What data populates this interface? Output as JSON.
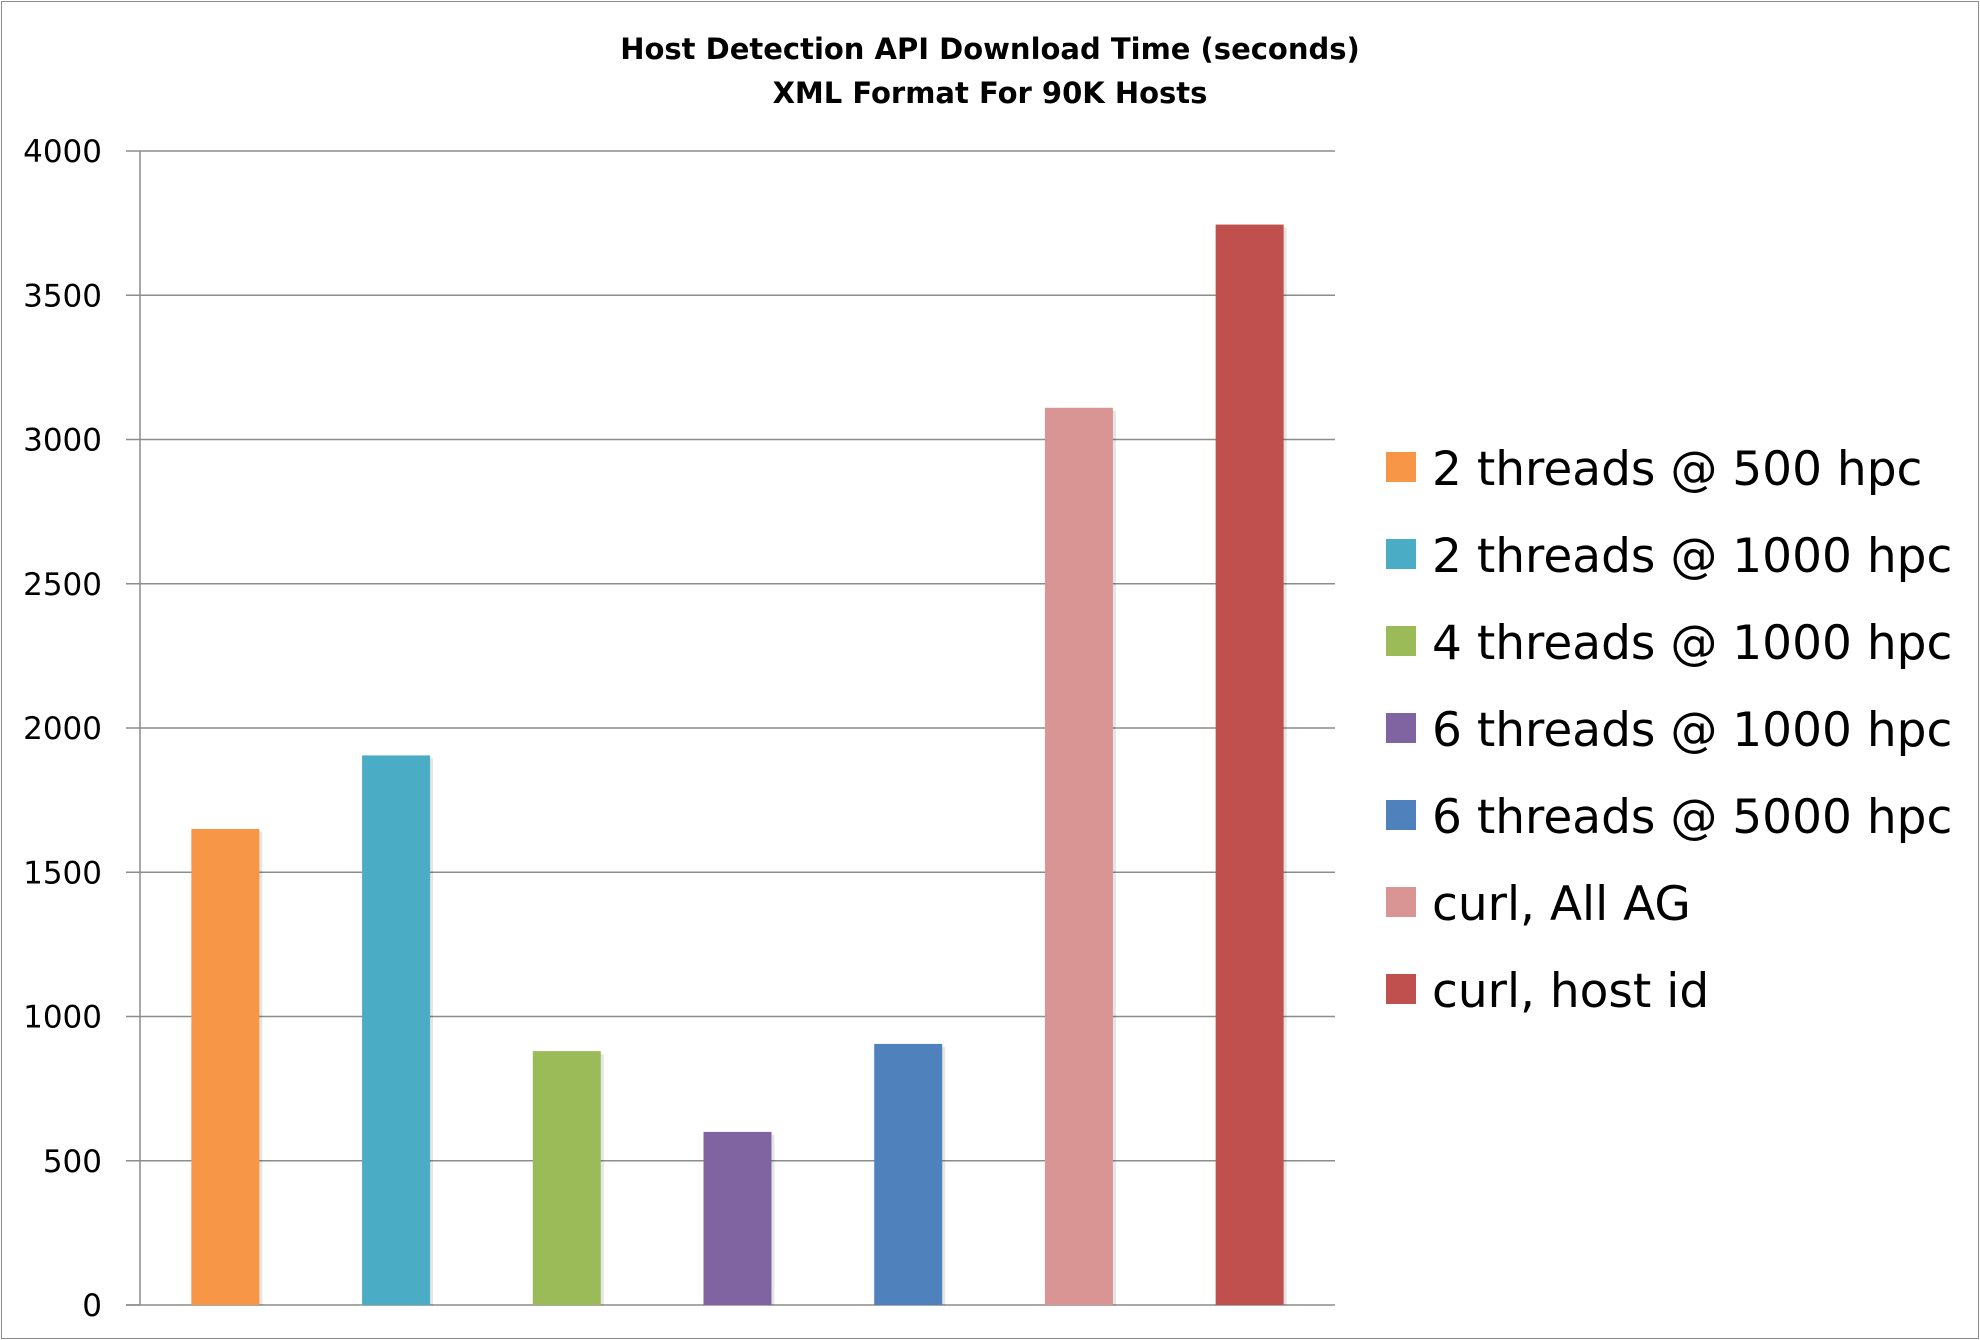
{
  "chart_data": {
    "type": "bar",
    "title": "Host Detection API Download Time (seconds)",
    "subtitle": "XML Format For 90K Hosts",
    "xlabel": "",
    "ylabel": "",
    "ylim": [
      0,
      4000
    ],
    "yticks": [
      0,
      500,
      1000,
      1500,
      2000,
      2500,
      3000,
      3500,
      4000
    ],
    "grid": true,
    "legend_position": "right",
    "series": [
      {
        "name": "2 threads @ 500 hpc",
        "value": 1650,
        "color": "#f79646"
      },
      {
        "name": "2 threads @ 1000 hpc",
        "value": 1905,
        "color": "#4bacc6"
      },
      {
        "name": "4 threads @ 1000 hpc",
        "value": 880,
        "color": "#9bbb59"
      },
      {
        "name": "6 threads @ 1000 hpc",
        "value": 600,
        "color": "#8064a2"
      },
      {
        "name": "6 threads @ 5000 hpc",
        "value": 905,
        "color": "#4f81bd"
      },
      {
        "name": "curl, All AG",
        "value": 3110,
        "color": "#d99594"
      },
      {
        "name": "curl, host id",
        "value": 3745,
        "color": "#c0504d"
      }
    ]
  }
}
